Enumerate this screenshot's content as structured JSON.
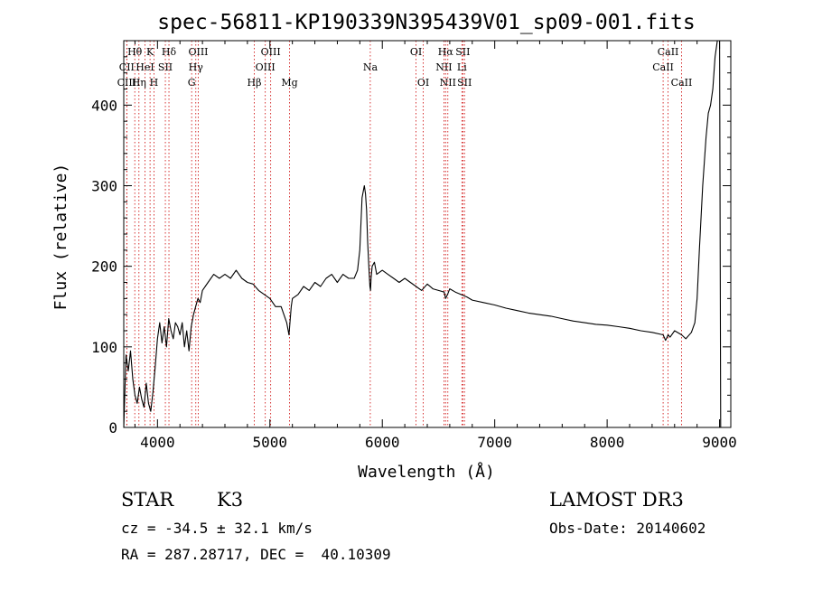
{
  "chart_data": {
    "type": "line",
    "title": "spec-56811-KP190339N395439V01_sp09-001.fits",
    "xlabel": "Wavelength (Å)",
    "ylabel": "Flux (relative)",
    "xlim": [
      3700,
      9100
    ],
    "ylim": [
      0,
      480
    ],
    "x_ticks": [
      4000,
      5000,
      6000,
      7000,
      8000,
      9000
    ],
    "y_ticks": [
      0,
      100,
      200,
      300,
      400
    ],
    "grid": false,
    "legend": "none",
    "line_color": "#000000",
    "marker_color": "#cc0000",
    "spectrum": {
      "x": [
        3700,
        3720,
        3740,
        3760,
        3780,
        3800,
        3820,
        3840,
        3860,
        3880,
        3900,
        3920,
        3940,
        3960,
        3980,
        4000,
        4020,
        4040,
        4060,
        4080,
        4100,
        4120,
        4140,
        4160,
        4180,
        4200,
        4220,
        4240,
        4260,
        4280,
        4300,
        4320,
        4340,
        4360,
        4380,
        4400,
        4450,
        4500,
        4550,
        4600,
        4650,
        4700,
        4750,
        4800,
        4850,
        4900,
        4950,
        5000,
        5050,
        5100,
        5150,
        5170,
        5190,
        5200,
        5250,
        5300,
        5350,
        5400,
        5450,
        5500,
        5550,
        5600,
        5650,
        5700,
        5750,
        5780,
        5800,
        5820,
        5840,
        5850,
        5860,
        5870,
        5880,
        5890,
        5895,
        5900,
        5910,
        5930,
        5950,
        6000,
        6050,
        6100,
        6150,
        6200,
        6250,
        6300,
        6350,
        6400,
        6450,
        6500,
        6550,
        6563,
        6580,
        6600,
        6650,
        6700,
        6750,
        6800,
        6900,
        7000,
        7100,
        7200,
        7300,
        7400,
        7500,
        7600,
        7700,
        7800,
        7900,
        8000,
        8100,
        8200,
        8300,
        8400,
        8498,
        8520,
        8542,
        8560,
        8600,
        8662,
        8700,
        8750,
        8780,
        8800,
        8820,
        8850,
        8880,
        8900,
        8920,
        8940,
        8960,
        8980,
        9000,
        9010,
        9020
      ],
      "y": [
        0,
        90,
        70,
        95,
        60,
        40,
        30,
        50,
        35,
        25,
        55,
        30,
        20,
        45,
        75,
        110,
        130,
        105,
        125,
        100,
        135,
        120,
        110,
        130,
        125,
        115,
        130,
        100,
        120,
        95,
        125,
        140,
        150,
        160,
        155,
        170,
        180,
        190,
        185,
        190,
        185,
        195,
        185,
        180,
        178,
        170,
        165,
        160,
        150,
        150,
        130,
        115,
        150,
        160,
        165,
        175,
        170,
        180,
        175,
        185,
        190,
        180,
        190,
        185,
        185,
        195,
        220,
        285,
        300,
        290,
        270,
        230,
        200,
        175,
        170,
        185,
        200,
        205,
        190,
        195,
        190,
        185,
        180,
        185,
        180,
        175,
        170,
        178,
        172,
        170,
        168,
        160,
        165,
        172,
        168,
        165,
        162,
        158,
        155,
        152,
        148,
        145,
        142,
        140,
        138,
        135,
        132,
        130,
        128,
        127,
        125,
        123,
        120,
        118,
        115,
        108,
        115,
        112,
        120,
        115,
        110,
        118,
        130,
        160,
        220,
        300,
        360,
        390,
        400,
        420,
        460,
        480,
        480,
        0,
        0
      ]
    },
    "line_markers": [
      {
        "label": "Hθ",
        "wl": 3798,
        "row": 1
      },
      {
        "label": "CII",
        "wl": 3727,
        "row": 2
      },
      {
        "label": "CIII",
        "wl": 3727,
        "row": 3
      },
      {
        "label": "K",
        "wl": 3934,
        "row": 1
      },
      {
        "label": "HeI",
        "wl": 3889,
        "row": 2
      },
      {
        "label": "Hη",
        "wl": 3835,
        "row": 3
      },
      {
        "label": "Hδ",
        "wl": 4102,
        "row": 1
      },
      {
        "label": "SII",
        "wl": 4070,
        "row": 2
      },
      {
        "label": "H",
        "wl": 3969,
        "row": 3
      },
      {
        "label": "OIII",
        "wl": 4363,
        "row": 1
      },
      {
        "label": "Hγ",
        "wl": 4341,
        "row": 2
      },
      {
        "label": "G",
        "wl": 4304,
        "row": 3
      },
      {
        "label": "OIII",
        "wl": 5007,
        "row": 1
      },
      {
        "label": "OIII",
        "wl": 4959,
        "row": 2
      },
      {
        "label": "Hβ",
        "wl": 4861,
        "row": 3
      },
      {
        "label": "Mg",
        "wl": 5175,
        "row": 3
      },
      {
        "label": "Na",
        "wl": 5893,
        "row": 2
      },
      {
        "label": "OI",
        "wl": 6300,
        "row": 1
      },
      {
        "label": "OI",
        "wl": 6364,
        "row": 3
      },
      {
        "label": "Hα",
        "wl": 6563,
        "row": 1
      },
      {
        "label": "SII",
        "wl": 6716,
        "row": 1
      },
      {
        "label": "NII",
        "wl": 6548,
        "row": 2
      },
      {
        "label": "Li",
        "wl": 6708,
        "row": 2
      },
      {
        "label": "NII",
        "wl": 6583,
        "row": 3
      },
      {
        "label": "SII",
        "wl": 6731,
        "row": 3
      },
      {
        "label": "CaII",
        "wl": 8542,
        "row": 1
      },
      {
        "label": "CaII",
        "wl": 8498,
        "row": 2
      },
      {
        "label": "CaII",
        "wl": 8662,
        "row": 3
      }
    ]
  },
  "info": {
    "class": "STAR",
    "subclass": "K3",
    "survey": "LAMOST DR3",
    "cz": "cz = -34.5 ± 32.1 km/s",
    "obs_date": "Obs-Date: 20140602",
    "coords": "RA = 287.28717, DEC =  40.10309"
  }
}
